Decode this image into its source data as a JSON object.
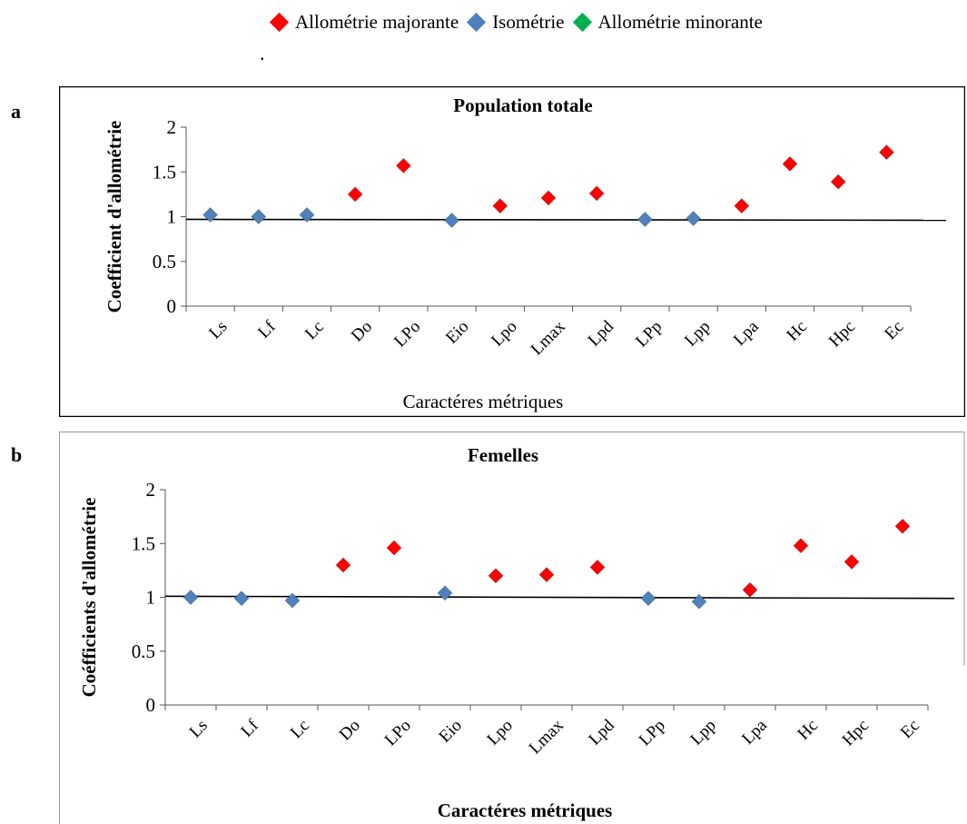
{
  "legend": {
    "items": [
      {
        "label": "Allométrie majorante",
        "color": "#ff0000"
      },
      {
        "label": "Isométrie",
        "color": "#4f81bd"
      },
      {
        "label": "Allométrie minorante",
        "color": "#00b050"
      }
    ]
  },
  "dot": ".",
  "panels": [
    "a",
    "b"
  ],
  "colors": {
    "majorante": "#ff0000",
    "isometrie": "#4f81bd",
    "minorante": "#00b050"
  },
  "chart_data": [
    {
      "type": "scatter",
      "title": "Population totale",
      "xlabel": "Caractéres métriques",
      "ylabel": "Coefficient d'allométrie",
      "ylim": [
        0,
        2
      ],
      "yticks": [
        "0",
        "0.5",
        "1",
        "1.5",
        "2"
      ],
      "grid": false,
      "legend": "top",
      "categories": [
        "Ls",
        "Lf",
        "Lc",
        "Do",
        "LPo",
        "Eio",
        "Lpo",
        "Lmax",
        "Lpd",
        "LPp",
        "Lpp",
        "Lpa",
        "Hc",
        "Hpc",
        "Ec"
      ],
      "values": [
        1.02,
        1.0,
        1.02,
        1.25,
        1.57,
        0.96,
        1.12,
        1.21,
        1.26,
        0.97,
        0.98,
        1.12,
        1.59,
        1.39,
        1.72
      ],
      "classes": [
        "isometrie",
        "isometrie",
        "isometrie",
        "majorante",
        "majorante",
        "isometrie",
        "majorante",
        "majorante",
        "majorante",
        "isometrie",
        "isometrie",
        "majorante",
        "majorante",
        "majorante",
        "majorante"
      ],
      "reference_line": [
        0.97,
        0.96
      ]
    },
    {
      "type": "scatter",
      "title": "Femelles",
      "xlabel": "Caractéres métriques",
      "ylabel": "Coéfficients d'allométrie",
      "ylim": [
        0,
        2
      ],
      "yticks": [
        "0",
        "0.5",
        "1",
        "1.5",
        "2"
      ],
      "grid": false,
      "legend": "top",
      "categories": [
        "Ls",
        "Lf",
        "Lc",
        "Do",
        "LPo",
        "Eio",
        "Lpo",
        "Lmax",
        "Lpd",
        "LPp",
        "Lpp",
        "Lpa",
        "Hc",
        "Hpc",
        "Ec"
      ],
      "values": [
        1.0,
        0.99,
        0.97,
        1.3,
        1.46,
        1.04,
        1.2,
        1.21,
        1.28,
        0.99,
        0.96,
        1.07,
        1.48,
        1.33,
        1.66
      ],
      "classes": [
        "isometrie",
        "isometrie",
        "isometrie",
        "majorante",
        "majorante",
        "isometrie",
        "majorante",
        "majorante",
        "majorante",
        "isometrie",
        "isometrie",
        "majorante",
        "majorante",
        "majorante",
        "majorante"
      ],
      "reference_line": [
        1.01,
        0.99
      ]
    }
  ]
}
